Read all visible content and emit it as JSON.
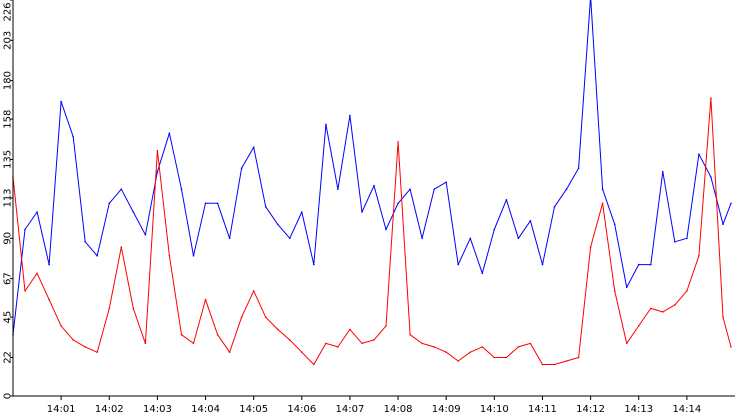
{
  "chart_data": {
    "type": "line",
    "title": "",
    "xlabel": "",
    "ylabel": "",
    "ylim": [
      0,
      226
    ],
    "xlim": [
      "14:00:00",
      "14:15:00"
    ],
    "grid": false,
    "legend": "none",
    "y_ticks": [
      0,
      22,
      45,
      67,
      90,
      113,
      135,
      158,
      180,
      203,
      226
    ],
    "x_ticks": [
      "14:01",
      "14:02",
      "14:03",
      "14:04",
      "14:05",
      "14:06",
      "14:07",
      "14:08",
      "14:09",
      "14:10",
      "14:11",
      "14:12",
      "14:13",
      "14:14"
    ],
    "series": [
      {
        "color": "#0000ff",
        "x": [
          "14:00:00",
          "14:00:15",
          "14:00:30",
          "14:00:45",
          "14:01:00",
          "14:01:15",
          "14:01:30",
          "14:01:45",
          "14:02:00",
          "14:02:15",
          "14:02:30",
          "14:02:45",
          "14:03:00",
          "14:03:15",
          "14:03:30",
          "14:03:45",
          "14:04:00",
          "14:04:15",
          "14:04:30",
          "14:04:45",
          "14:05:00",
          "14:05:15",
          "14:05:30",
          "14:05:45",
          "14:06:00",
          "14:06:15",
          "14:06:30",
          "14:06:45",
          "14:07:00",
          "14:07:15",
          "14:07:30",
          "14:07:45",
          "14:08:00",
          "14:08:15",
          "14:08:30",
          "14:08:45",
          "14:09:00",
          "14:09:15",
          "14:09:30",
          "14:09:45",
          "14:10:00",
          "14:10:15",
          "14:10:30",
          "14:10:45",
          "14:11:00",
          "14:11:15",
          "14:11:30",
          "14:11:45",
          "14:12:00",
          "14:12:15",
          "14:12:30",
          "14:12:45",
          "14:13:00",
          "14:13:15",
          "14:13:30",
          "14:13:45",
          "14:14:00",
          "14:14:15",
          "14:14:30",
          "14:14:45",
          "14:14:55"
        ],
        "y": [
          35,
          95,
          105,
          75,
          168,
          148,
          88,
          80,
          110,
          118,
          105,
          92,
          128,
          150,
          118,
          80,
          110,
          110,
          90,
          130,
          142,
          108,
          98,
          90,
          105,
          75,
          155,
          118,
          160,
          105,
          120,
          95,
          110,
          118,
          90,
          118,
          122,
          75,
          90,
          70,
          95,
          112,
          90,
          100,
          75,
          108,
          118,
          130,
          228,
          118,
          98,
          62,
          75,
          75,
          128,
          88,
          90,
          138,
          125,
          98,
          110
        ]
      },
      {
        "color": "#ff0000",
        "x": [
          "14:00:00",
          "14:00:15",
          "14:00:30",
          "14:00:45",
          "14:01:00",
          "14:01:15",
          "14:01:30",
          "14:01:45",
          "14:02:00",
          "14:02:15",
          "14:02:30",
          "14:02:45",
          "14:03:00",
          "14:03:15",
          "14:03:30",
          "14:03:45",
          "14:04:00",
          "14:04:15",
          "14:04:30",
          "14:04:45",
          "14:05:00",
          "14:05:15",
          "14:05:30",
          "14:05:45",
          "14:06:00",
          "14:06:15",
          "14:06:30",
          "14:06:45",
          "14:07:00",
          "14:07:15",
          "14:07:30",
          "14:07:45",
          "14:08:00",
          "14:08:15",
          "14:08:30",
          "14:08:45",
          "14:09:00",
          "14:09:15",
          "14:09:30",
          "14:09:45",
          "14:10:00",
          "14:10:15",
          "14:10:30",
          "14:10:45",
          "14:11:00",
          "14:11:15",
          "14:11:30",
          "14:11:45",
          "14:12:00",
          "14:12:15",
          "14:12:30",
          "14:12:45",
          "14:13:00",
          "14:13:15",
          "14:13:30",
          "14:13:45",
          "14:14:00",
          "14:14:15",
          "14:14:30",
          "14:14:45",
          "14:14:55"
        ],
        "y": [
          125,
          60,
          70,
          55,
          40,
          32,
          28,
          25,
          50,
          85,
          50,
          30,
          140,
          80,
          35,
          30,
          55,
          35,
          25,
          45,
          60,
          45,
          38,
          32,
          25,
          18,
          30,
          28,
          38,
          30,
          32,
          40,
          145,
          35,
          30,
          28,
          25,
          20,
          25,
          28,
          22,
          22,
          28,
          30,
          18,
          18,
          20,
          22,
          85,
          110,
          60,
          30,
          40,
          50,
          48,
          52,
          60,
          80,
          170,
          45,
          28
        ]
      }
    ]
  }
}
